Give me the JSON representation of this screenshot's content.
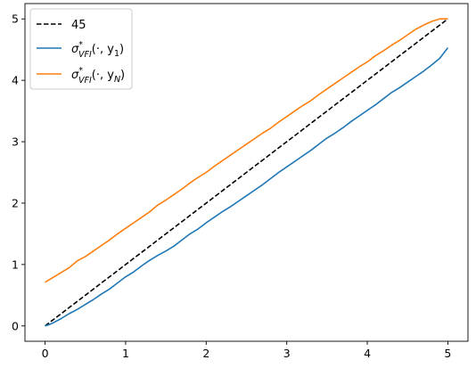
{
  "chart_data": {
    "type": "line",
    "title": "",
    "xlabel": "",
    "ylabel": "",
    "xlim": [
      -0.25,
      5.25
    ],
    "ylim": [
      -0.25,
      5.25
    ],
    "xticks": [
      0,
      1,
      2,
      3,
      4,
      5
    ],
    "yticks": [
      0,
      1,
      2,
      3,
      4,
      5
    ],
    "xtick_labels": [
      "0",
      "1",
      "2",
      "3",
      "4",
      "5"
    ],
    "ytick_labels": [
      "0",
      "1",
      "2",
      "3",
      "4",
      "5"
    ],
    "grid": false,
    "legend_position": "top-left",
    "series": [
      {
        "name": "45",
        "color": "#000000",
        "style": "dashed",
        "x": [
          0,
          5
        ],
        "y": [
          0,
          5
        ]
      },
      {
        "name_main": "σ",
        "name_sup": "*",
        "name_sub": "VFI",
        "name_args": "(·, y",
        "name_arg_sub": "1",
        "name_close": ")",
        "color": "#1f77b4",
        "style": "solid",
        "x": [
          0.0,
          0.05,
          0.1,
          0.2,
          0.3,
          0.4,
          0.5,
          0.6,
          0.7,
          0.8,
          0.9,
          1.0,
          1.1,
          1.2,
          1.3,
          1.4,
          1.5,
          1.6,
          1.7,
          1.8,
          1.9,
          2.0,
          2.1,
          2.2,
          2.3,
          2.4,
          2.5,
          2.6,
          2.7,
          2.8,
          2.9,
          3.0,
          3.1,
          3.2,
          3.3,
          3.4,
          3.5,
          3.6,
          3.7,
          3.8,
          3.9,
          4.0,
          4.1,
          4.2,
          4.3,
          4.4,
          4.5,
          4.6,
          4.7,
          4.8,
          4.9,
          5.0
        ],
        "y": [
          0.0,
          0.02,
          0.05,
          0.12,
          0.2,
          0.27,
          0.35,
          0.43,
          0.52,
          0.6,
          0.7,
          0.8,
          0.88,
          0.98,
          1.07,
          1.15,
          1.22,
          1.3,
          1.4,
          1.5,
          1.58,
          1.68,
          1.77,
          1.86,
          1.94,
          2.03,
          2.12,
          2.21,
          2.3,
          2.4,
          2.5,
          2.59,
          2.68,
          2.77,
          2.86,
          2.96,
          3.06,
          3.14,
          3.23,
          3.33,
          3.42,
          3.51,
          3.6,
          3.7,
          3.8,
          3.88,
          3.97,
          4.06,
          4.15,
          4.25,
          4.36,
          4.53
        ]
      },
      {
        "name_main": "σ",
        "name_sup": "*",
        "name_sub": "VFI",
        "name_args": "(·, y",
        "name_arg_sub": "N",
        "name_close": ")",
        "color": "#ff7f0e",
        "style": "solid",
        "x": [
          0.0,
          0.1,
          0.2,
          0.3,
          0.4,
          0.5,
          0.6,
          0.7,
          0.8,
          0.9,
          1.0,
          1.1,
          1.2,
          1.3,
          1.4,
          1.5,
          1.6,
          1.7,
          1.8,
          1.9,
          2.0,
          2.1,
          2.2,
          2.3,
          2.4,
          2.5,
          2.6,
          2.7,
          2.8,
          2.9,
          3.0,
          3.1,
          3.2,
          3.3,
          3.4,
          3.5,
          3.6,
          3.7,
          3.8,
          3.9,
          4.0,
          4.1,
          4.2,
          4.3,
          4.4,
          4.5,
          4.6,
          4.7,
          4.8,
          4.9,
          5.0
        ],
        "y": [
          0.71,
          0.79,
          0.87,
          0.95,
          1.06,
          1.13,
          1.22,
          1.31,
          1.4,
          1.5,
          1.59,
          1.68,
          1.77,
          1.86,
          1.97,
          2.05,
          2.14,
          2.23,
          2.33,
          2.42,
          2.5,
          2.6,
          2.69,
          2.78,
          2.87,
          2.96,
          3.05,
          3.14,
          3.22,
          3.32,
          3.41,
          3.5,
          3.59,
          3.67,
          3.77,
          3.86,
          3.95,
          4.04,
          4.13,
          4.22,
          4.3,
          4.4,
          4.48,
          4.57,
          4.65,
          4.74,
          4.83,
          4.9,
          4.96,
          5.0,
          5.0
        ]
      }
    ]
  }
}
